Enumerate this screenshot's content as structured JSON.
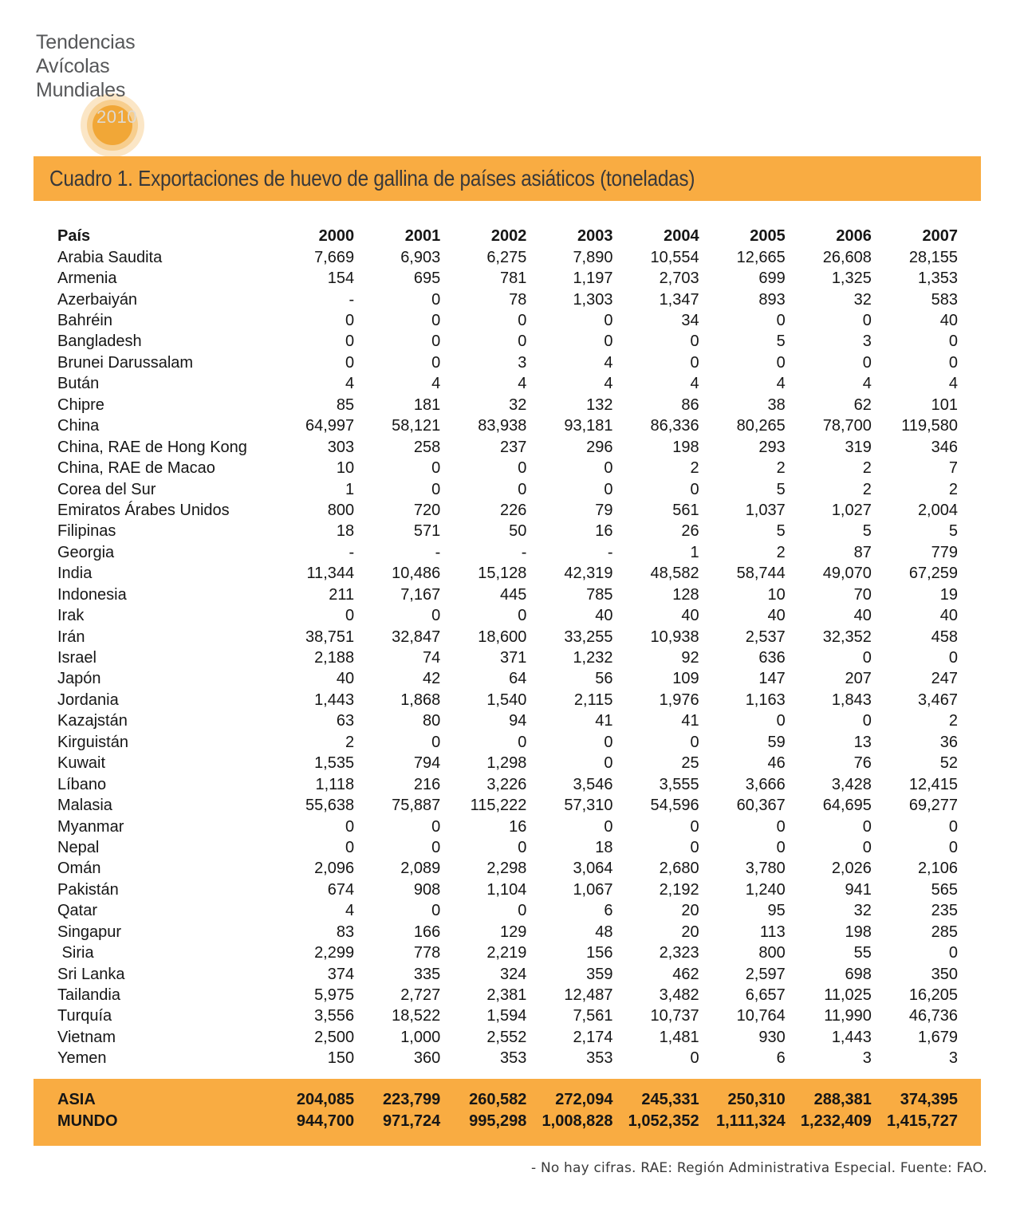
{
  "logo": {
    "line1": "Tendencias",
    "line2": "Avícolas",
    "line3": "Mundiales",
    "year": "2010"
  },
  "title": "Cuadro 1. Exportaciones de huevo de gallina de países asiáticos (toneladas)",
  "table": {
    "country_header": "País",
    "year_headers": [
      "2000",
      "2001",
      "2002",
      "2003",
      "2004",
      "2005",
      "2006",
      "2007"
    ],
    "rows": [
      {
        "country": "Arabia Saudita",
        "values": [
          "7,669",
          "6,903",
          "6,275",
          "7,890",
          "10,554",
          "12,665",
          "26,608",
          "28,155"
        ]
      },
      {
        "country": "Armenia",
        "values": [
          "154",
          "695",
          "781",
          "1,197",
          "2,703",
          "699",
          "1,325",
          "1,353"
        ]
      },
      {
        "country": "Azerbaiyán",
        "values": [
          "-",
          "0",
          "78",
          "1,303",
          "1,347",
          "893",
          "32",
          "583"
        ]
      },
      {
        "country": "Bahréin",
        "values": [
          "0",
          "0",
          "0",
          "0",
          "34",
          "0",
          "0",
          "40"
        ]
      },
      {
        "country": "Bangladesh",
        "values": [
          "0",
          "0",
          "0",
          "0",
          "0",
          "5",
          "3",
          "0"
        ]
      },
      {
        "country": "Brunei Darussalam",
        "values": [
          "0",
          "0",
          "3",
          "4",
          "0",
          "0",
          "0",
          "0"
        ]
      },
      {
        "country": "Bután",
        "values": [
          "4",
          "4",
          "4",
          "4",
          "4",
          "4",
          "4",
          "4"
        ]
      },
      {
        "country": "Chipre",
        "values": [
          "85",
          "181",
          "32",
          "132",
          "86",
          "38",
          "62",
          "101"
        ]
      },
      {
        "country": "China",
        "values": [
          "64,997",
          "58,121",
          "83,938",
          "93,181",
          "86,336",
          "80,265",
          "78,700",
          "119,580"
        ]
      },
      {
        "country": "China, RAE de Hong Kong",
        "values": [
          "303",
          "258",
          "237",
          "296",
          "198",
          "293",
          "319",
          "346"
        ]
      },
      {
        "country": "China, RAE de Macao",
        "values": [
          "10",
          "0",
          "0",
          "0",
          "2",
          "2",
          "2",
          "7"
        ]
      },
      {
        "country": "Corea del Sur",
        "values": [
          "1",
          "0",
          "0",
          "0",
          "0",
          "5",
          "2",
          "2"
        ]
      },
      {
        "country": "Emiratos Árabes Unidos",
        "values": [
          "800",
          "720",
          "226",
          "79",
          "561",
          "1,037",
          "1,027",
          "2,004"
        ]
      },
      {
        "country": "Filipinas",
        "values": [
          "18",
          "571",
          "50",
          "16",
          "26",
          "5",
          "5",
          "5"
        ]
      },
      {
        "country": "Georgia",
        "values": [
          "-",
          "-",
          "-",
          "-",
          "1",
          "2",
          "87",
          "779"
        ]
      },
      {
        "country": "India",
        "values": [
          "11,344",
          "10,486",
          "15,128",
          "42,319",
          "48,582",
          "58,744",
          "49,070",
          "67,259"
        ]
      },
      {
        "country": "Indonesia",
        "values": [
          "211",
          "7,167",
          "445",
          "785",
          "128",
          "10",
          "70",
          "19"
        ]
      },
      {
        "country": "Irak",
        "values": [
          "0",
          "0",
          "0",
          "40",
          "40",
          "40",
          "40",
          "40"
        ]
      },
      {
        "country": "Irán",
        "values": [
          "38,751",
          "32,847",
          "18,600",
          "33,255",
          "10,938",
          "2,537",
          "32,352",
          "458"
        ]
      },
      {
        "country": "Israel",
        "values": [
          "2,188",
          "74",
          "371",
          "1,232",
          "92",
          "636",
          "0",
          "0"
        ]
      },
      {
        "country": "Japón",
        "values": [
          "40",
          "42",
          "64",
          "56",
          "109",
          "147",
          "207",
          "247"
        ]
      },
      {
        "country": "Jordania",
        "values": [
          "1,443",
          "1,868",
          "1,540",
          "2,115",
          "1,976",
          "1,163",
          "1,843",
          "3,467"
        ]
      },
      {
        "country": "Kazajstán",
        "values": [
          "63",
          "80",
          "94",
          "41",
          "41",
          "0",
          "0",
          "2"
        ]
      },
      {
        "country": "Kirguistán",
        "values": [
          "2",
          "0",
          "0",
          "0",
          "0",
          "59",
          "13",
          "36"
        ]
      },
      {
        "country": "Kuwait",
        "values": [
          "1,535",
          "794",
          "1,298",
          "0",
          "25",
          "46",
          "76",
          "52"
        ]
      },
      {
        "country": "Líbano",
        "values": [
          "1,118",
          "216",
          "3,226",
          "3,546",
          "3,555",
          "3,666",
          "3,428",
          "12,415"
        ]
      },
      {
        "country": "Malasia",
        "values": [
          "55,638",
          "75,887",
          "115,222",
          "57,310",
          "54,596",
          "60,367",
          "64,695",
          "69,277"
        ]
      },
      {
        "country": "Myanmar",
        "values": [
          "0",
          "0",
          "16",
          "0",
          "0",
          "0",
          "0",
          "0"
        ]
      },
      {
        "country": "Nepal",
        "values": [
          "0",
          "0",
          "0",
          "18",
          "0",
          "0",
          "0",
          "0"
        ]
      },
      {
        "country": "Omán",
        "values": [
          "2,096",
          "2,089",
          "2,298",
          "3,064",
          "2,680",
          "3,780",
          "2,026",
          "2,106"
        ]
      },
      {
        "country": "Pakistán",
        "values": [
          "674",
          "908",
          "1,104",
          "1,067",
          "2,192",
          "1,240",
          "941",
          "565"
        ]
      },
      {
        "country": "Qatar",
        "values": [
          "4",
          "0",
          "0",
          "6",
          "20",
          "95",
          "32",
          "235"
        ]
      },
      {
        "country": "Singapur",
        "values": [
          "83",
          "166",
          "129",
          "48",
          "20",
          "113",
          "198",
          "285"
        ]
      },
      {
        "country": " Siria",
        "values": [
          "2,299",
          "778",
          "2,219",
          "156",
          "2,323",
          "800",
          "55",
          "0"
        ]
      },
      {
        "country": "Sri Lanka",
        "values": [
          "374",
          "335",
          "324",
          "359",
          "462",
          "2,597",
          "698",
          "350"
        ]
      },
      {
        "country": "Tailandia",
        "values": [
          "5,975",
          "2,727",
          "2,381",
          "12,487",
          "3,482",
          "6,657",
          "11,025",
          "16,205"
        ]
      },
      {
        "country": "Turquía",
        "values": [
          "3,556",
          "18,522",
          "1,594",
          "7,561",
          "10,737",
          "10,764",
          "11,990",
          "46,736"
        ]
      },
      {
        "country": "Vietnam",
        "values": [
          "2,500",
          "1,000",
          "2,552",
          "2,174",
          "1,481",
          "930",
          "1,443",
          "1,679"
        ]
      },
      {
        "country": "Yemen",
        "values": [
          "150",
          "360",
          "353",
          "353",
          "0",
          "6",
          "3",
          "3"
        ]
      }
    ],
    "totals": [
      {
        "label": "ASIA",
        "values": [
          "204,085",
          "223,799",
          "260,582",
          "272,094",
          "245,331",
          "250,310",
          "288,381",
          "374,395"
        ]
      },
      {
        "label": "MUNDO",
        "values": [
          "944,700",
          "971,724",
          "995,298",
          "1,008,828",
          "1,052,352",
          "1,111,324",
          "1,232,409",
          "1,415,727"
        ]
      }
    ]
  },
  "footnote": "- No hay cifras. RAE: Región Administrativa Especial. Fuente: FAO.",
  "colors": {
    "accent_orange": "#F9AC42",
    "logo_outer_circle": "#FBE6C6",
    "logo_middle_circle": "#F7CE8E",
    "logo_inner_circle": "#F1A737"
  }
}
